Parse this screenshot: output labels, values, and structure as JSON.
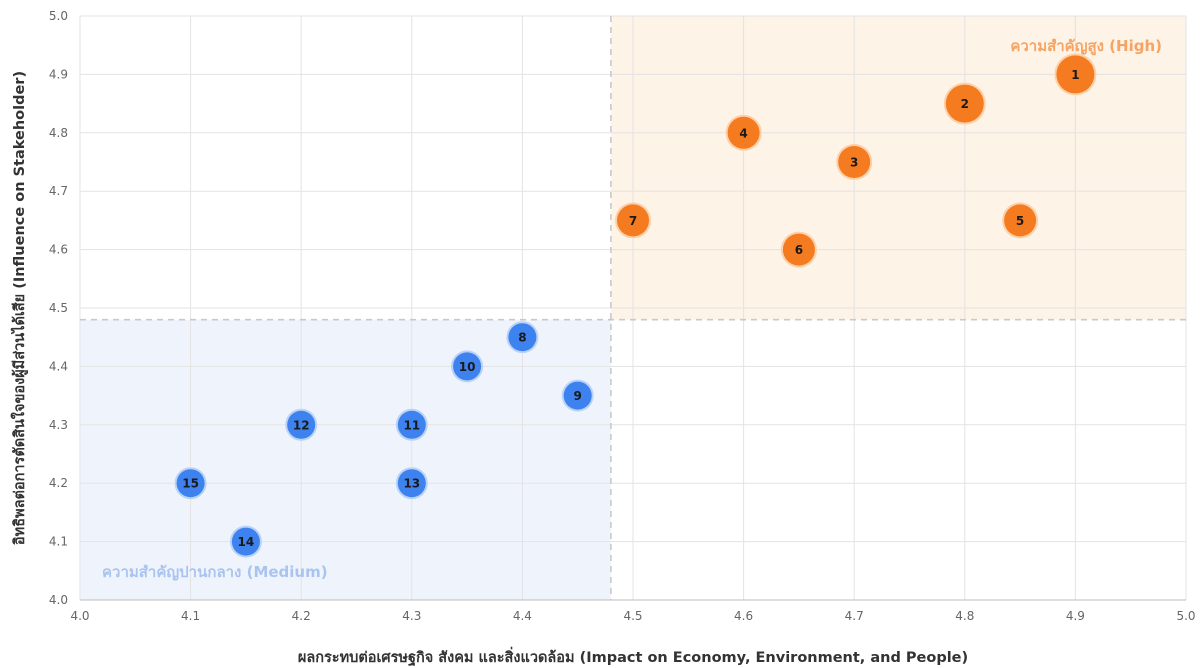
{
  "chart_data": {
    "type": "scatter",
    "title": "",
    "xlabel": "ผลกระทบต่อเศรษฐกิจ สังคม และสิ่งแวดล้อม (Impact on Economy, Environment, and People)",
    "ylabel": "อิทธิพลต่อการตัดสินใจของผู้มีส่วนได้เสีย (Influence on Stakeholder)",
    "xlim": [
      4.0,
      5.0
    ],
    "ylim": [
      4.0,
      5.0
    ],
    "x_ticks": [
      "4.0",
      "4.1",
      "4.2",
      "4.3",
      "4.4",
      "4.5",
      "4.6",
      "4.7",
      "4.8",
      "4.9",
      "5.0"
    ],
    "y_ticks": [
      "4.0",
      "4.1",
      "4.2",
      "4.3",
      "4.4",
      "4.5",
      "4.6",
      "4.7",
      "4.8",
      "4.9",
      "5.0"
    ],
    "grid": true,
    "threshold_x": 4.48,
    "threshold_y": 4.48,
    "zones": [
      {
        "label": "ความสำคัญสูง (High)",
        "color": "#f6a463",
        "fill": "#fdf3e7",
        "x_range": [
          4.48,
          5.0
        ],
        "y_range": [
          4.48,
          5.0
        ]
      },
      {
        "label": "ความสำคัญปานกลาง (Medium)",
        "color": "#a9c4ef",
        "fill": "#eff4fc",
        "x_range": [
          4.0,
          4.48
        ],
        "y_range": [
          4.0,
          4.48
        ]
      }
    ],
    "series": [
      {
        "color": "#f47b20",
        "border": "#ffd0a8",
        "points": [
          {
            "label": "1",
            "x": 4.9,
            "y": 4.9,
            "size": 19
          },
          {
            "label": "2",
            "x": 4.8,
            "y": 4.85,
            "size": 19
          },
          {
            "label": "3",
            "x": 4.7,
            "y": 4.75,
            "size": 16
          },
          {
            "label": "4",
            "x": 4.6,
            "y": 4.8,
            "size": 16
          },
          {
            "label": "5",
            "x": 4.85,
            "y": 4.65,
            "size": 16
          },
          {
            "label": "6",
            "x": 4.65,
            "y": 4.6,
            "size": 16
          },
          {
            "label": "7",
            "x": 4.5,
            "y": 4.65,
            "size": 16
          }
        ]
      },
      {
        "color": "#3d82ee",
        "border": "#b9d2f8",
        "points": [
          {
            "label": "8",
            "x": 4.4,
            "y": 4.45,
            "size": 14
          },
          {
            "label": "9",
            "x": 4.45,
            "y": 4.35,
            "size": 14
          },
          {
            "label": "10",
            "x": 4.35,
            "y": 4.4,
            "size": 14
          },
          {
            "label": "11",
            "x": 4.3,
            "y": 4.3,
            "size": 14
          },
          {
            "label": "12",
            "x": 4.2,
            "y": 4.3,
            "size": 14
          },
          {
            "label": "13",
            "x": 4.3,
            "y": 4.2,
            "size": 14
          },
          {
            "label": "14",
            "x": 4.15,
            "y": 4.1,
            "size": 14
          },
          {
            "label": "15",
            "x": 4.1,
            "y": 4.2,
            "size": 14
          }
        ]
      }
    ]
  }
}
